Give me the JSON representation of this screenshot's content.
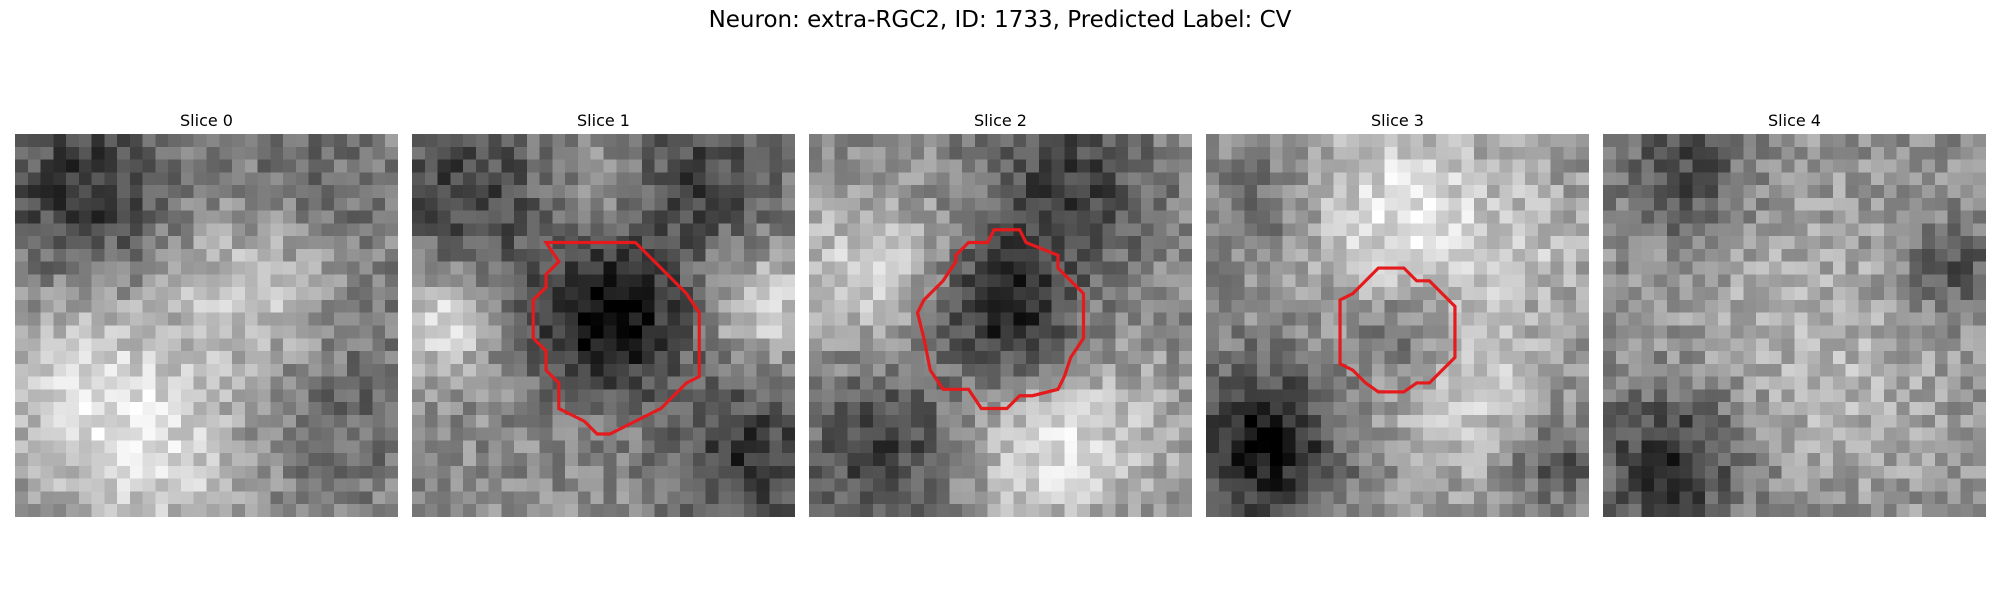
{
  "figure": {
    "title": "Neuron: extra-RGC2, ID: 1733, Predicted Label: CV"
  },
  "panels": [
    {
      "title": "Slice 0",
      "seed": 11,
      "has_outline": false
    },
    {
      "title": "Slice 1",
      "seed": 23,
      "has_outline": true
    },
    {
      "title": "Slice 2",
      "seed": 37,
      "has_outline": true
    },
    {
      "title": "Slice 3",
      "seed": 51,
      "has_outline": true
    },
    {
      "title": "Slice 4",
      "seed": 67,
      "has_outline": false
    }
  ],
  "style": {
    "outline_color": "#e41a1c",
    "colormap": "gray"
  }
}
